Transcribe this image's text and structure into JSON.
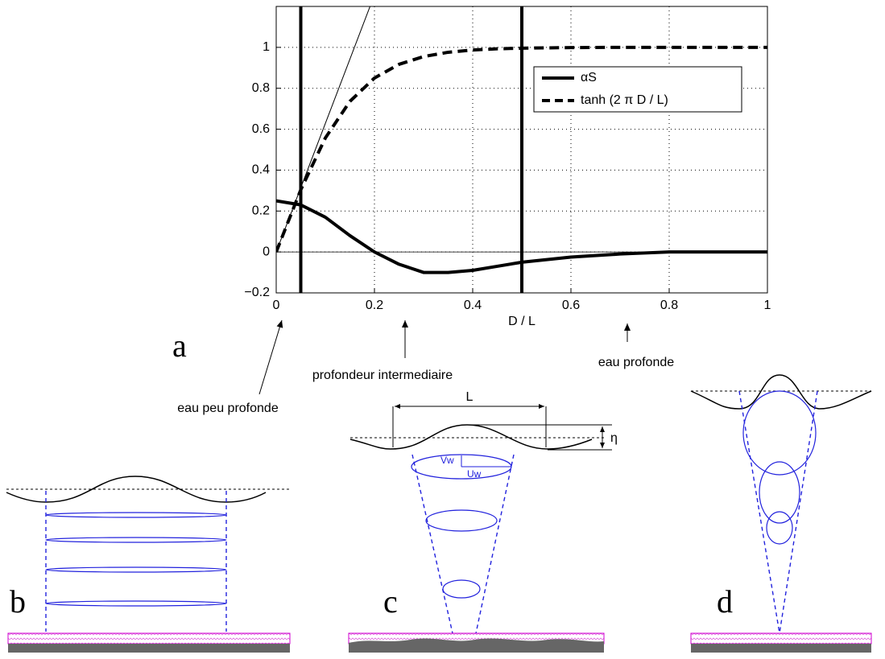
{
  "chart_data": {
    "type": "line",
    "x_label": "D / L",
    "x": [
      0,
      0.05,
      0.1,
      0.15,
      0.2,
      0.25,
      0.3,
      0.35,
      0.4,
      0.45,
      0.5,
      0.6,
      0.7,
      0.8,
      0.9,
      1
    ],
    "series": [
      {
        "name": "αS",
        "color": "#000000",
        "dash": false,
        "width": 4,
        "values": [
          0.25,
          0.23,
          0.17,
          0.08,
          0.0,
          -0.06,
          -0.1,
          -0.1,
          -0.09,
          -0.07,
          -0.05,
          -0.025,
          -0.01,
          0,
          0,
          0
        ]
      },
      {
        "name": "tanh (2 π D / L)",
        "color": "#000000",
        "dash": true,
        "width": 4,
        "values": [
          0,
          0.304,
          0.557,
          0.736,
          0.85,
          0.917,
          0.955,
          0.976,
          0.987,
          0.993,
          0.996,
          0.999,
          1,
          1,
          1,
          1
        ]
      },
      {
        "color": "#000000",
        "dash": false,
        "width": 1,
        "values": [
          0,
          0.314,
          0.628,
          0.942,
          1.257,
          null,
          null,
          null,
          null,
          null,
          null,
          null,
          null,
          null,
          null,
          null
        ]
      }
    ],
    "vlines": [
      0.05,
      0.5
    ],
    "xlim": [
      0,
      1
    ],
    "ylim": [
      -0.2,
      1.2
    ],
    "xticks": [
      0,
      0.2,
      0.4,
      0.6,
      0.8,
      1
    ],
    "yticks": [
      {
        "value": -0.2,
        "label": "−0.2"
      },
      0,
      0.2,
      0.4,
      0.6,
      0.8,
      1
    ],
    "grid": true,
    "legend": "upper right"
  },
  "annotations": {
    "panel_a": "a",
    "shallow": "eau peu profonde",
    "intermediate": "profondeur intermediaire",
    "deep": "eau profonde",
    "panel_b": "b",
    "panel_c": "c",
    "panel_d": "d",
    "wavelength": "L",
    "amplitude": "η",
    "vw": "Vw",
    "uw": "Uw"
  }
}
